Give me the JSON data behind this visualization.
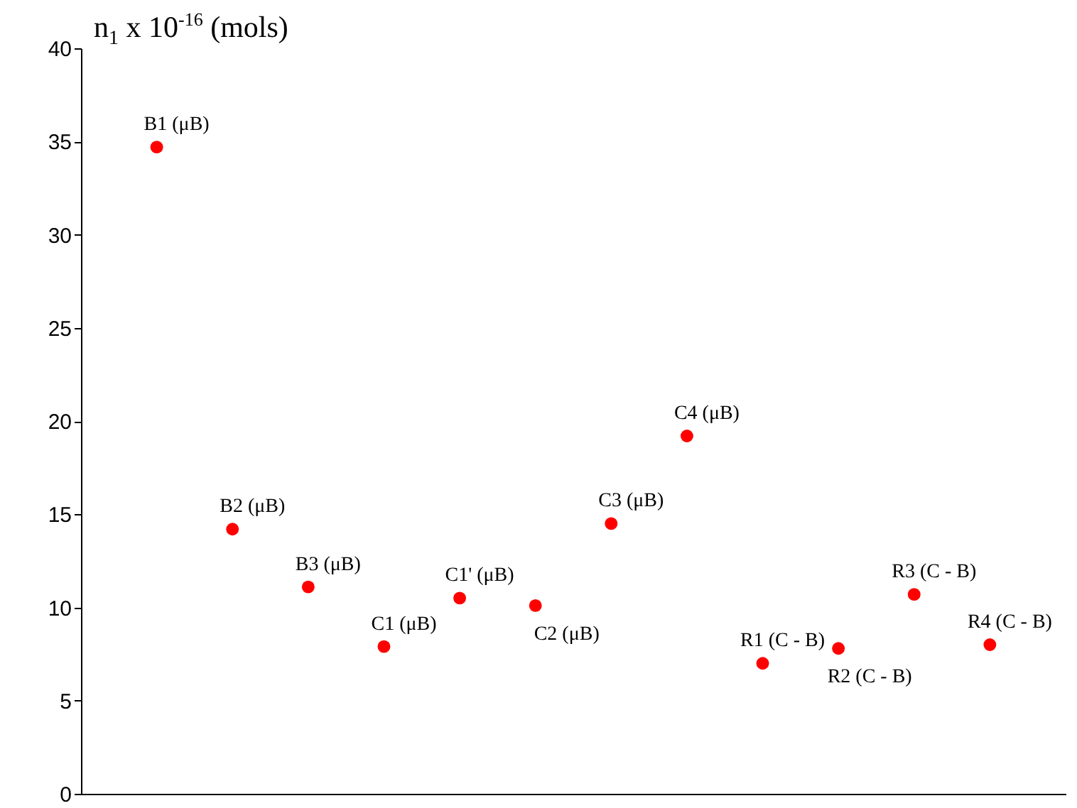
{
  "chart_data": {
    "type": "scatter",
    "ylabel": "n$_{1}$ x 10$^{-16}$ (mols)",
    "categories": [
      null,
      null,
      null,
      null,
      null,
      null,
      null,
      null,
      null,
      null,
      null,
      null
    ],
    "ylim": [
      0,
      40
    ],
    "yticks": [
      0,
      5,
      10,
      15,
      20,
      25,
      30,
      35,
      40
    ],
    "marker": "circle",
    "series": [
      {
        "name": "B1 (μB)",
        "color": "#ff0000",
        "values": [
          34.7,
          null,
          null,
          null,
          null,
          null,
          null,
          null,
          null,
          null,
          null,
          null
        ]
      },
      {
        "name": "B2 (μB)",
        "color": "#ff0000",
        "values": [
          null,
          14.2,
          null,
          null,
          null,
          null,
          null,
          null,
          null,
          null,
          null,
          null
        ]
      },
      {
        "name": "B3 (μB)",
        "color": "#ff0000",
        "values": [
          null,
          null,
          11.1,
          null,
          null,
          null,
          null,
          null,
          null,
          null,
          null,
          null
        ]
      },
      {
        "name": "C1 (μB)",
        "color": "#ff0000",
        "values": [
          null,
          null,
          null,
          7.9,
          null,
          null,
          null,
          null,
          null,
          null,
          null,
          null
        ]
      },
      {
        "name": "C1' (μB)",
        "color": "#ff0000",
        "values": [
          null,
          null,
          null,
          null,
          10.5,
          null,
          null,
          null,
          null,
          null,
          null,
          null
        ]
      },
      {
        "name": "C2 (μB)",
        "color": "#ff0000",
        "values": [
          null,
          null,
          null,
          null,
          null,
          10.1,
          null,
          null,
          null,
          null,
          null,
          null
        ]
      },
      {
        "name": "C3 (μB)",
        "color": "#ff0000",
        "values": [
          null,
          null,
          null,
          null,
          null,
          null,
          14.5,
          null,
          null,
          null,
          null,
          null
        ]
      },
      {
        "name": "C4 (μB)",
        "color": "#ff0000",
        "values": [
          null,
          null,
          null,
          null,
          null,
          null,
          null,
          19.2,
          null,
          null,
          null,
          null
        ]
      },
      {
        "name": "R1 (C - B)",
        "color": "#ff0000",
        "values": [
          null,
          null,
          null,
          null,
          null,
          null,
          null,
          null,
          7.0,
          null,
          null,
          null
        ]
      },
      {
        "name": "R2 (C - B)",
        "color": "#ff0000",
        "values": [
          null,
          null,
          null,
          null,
          null,
          null,
          null,
          null,
          null,
          7.8,
          null,
          null
        ]
      },
      {
        "name": "R3 (C - B)",
        "color": "#ff0000",
        "values": [
          null,
          null,
          null,
          null,
          null,
          null,
          null,
          null,
          null,
          null,
          10.7,
          null
        ]
      },
      {
        "name": "R4 (C - B)",
        "color": "#ff0000",
        "values": [
          null,
          null,
          null,
          null,
          null,
          null,
          null,
          null,
          null,
          null,
          null,
          8.0
        ]
      }
    ]
  }
}
